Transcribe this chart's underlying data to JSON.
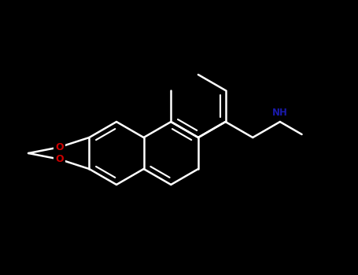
{
  "bg_color": "#000000",
  "bond_color": "#ffffff",
  "oxygen_color": "#cc0000",
  "nitrogen_color": "#1a1aaa",
  "lw": 1.8,
  "figsize": [
    4.55,
    3.5
  ],
  "dpi": 100,
  "xlim": [
    0,
    455
  ],
  "ylim": [
    0,
    350
  ]
}
